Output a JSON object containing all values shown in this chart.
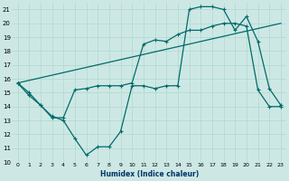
{
  "xlabel": "Humidex (Indice chaleur)",
  "bg_color": "#cde8e4",
  "line_color": "#006b6b",
  "grid_color": "#afd8d0",
  "xlim": [
    -0.5,
    23.5
  ],
  "ylim": [
    10,
    21.5
  ],
  "yticks": [
    10,
    11,
    12,
    13,
    14,
    15,
    16,
    17,
    18,
    19,
    20,
    21
  ],
  "xticks": [
    0,
    1,
    2,
    3,
    4,
    5,
    6,
    7,
    8,
    9,
    10,
    11,
    12,
    13,
    14,
    15,
    16,
    17,
    18,
    19,
    20,
    21,
    22,
    23
  ],
  "line1_x": [
    0,
    1,
    2,
    3,
    4,
    5,
    6,
    7,
    8,
    9,
    10,
    11,
    12,
    13,
    14,
    15,
    16,
    17,
    18,
    19,
    20,
    21,
    22,
    23
  ],
  "line1_y": [
    15.7,
    15.0,
    14.1,
    13.3,
    13.0,
    11.7,
    10.5,
    11.1,
    11.1,
    12.2,
    15.5,
    15.5,
    15.3,
    15.5,
    15.5,
    21.0,
    21.2,
    21.2,
    21.0,
    19.5,
    20.5,
    18.7,
    15.3,
    14.1
  ],
  "line2_x": [
    0,
    23
  ],
  "line2_y": [
    15.7,
    20.0
  ],
  "line3_x": [
    0,
    1,
    2,
    3,
    4,
    5,
    6,
    7,
    8,
    9,
    10,
    11,
    12,
    13,
    14,
    15,
    16,
    17,
    18,
    19,
    20,
    21,
    22,
    23
  ],
  "line3_y": [
    15.7,
    14.8,
    14.1,
    13.2,
    13.2,
    15.2,
    15.3,
    15.5,
    15.5,
    15.5,
    15.7,
    18.5,
    18.8,
    18.7,
    19.2,
    19.5,
    19.5,
    19.8,
    20.0,
    20.0,
    19.8,
    15.2,
    14.0,
    14.0
  ]
}
